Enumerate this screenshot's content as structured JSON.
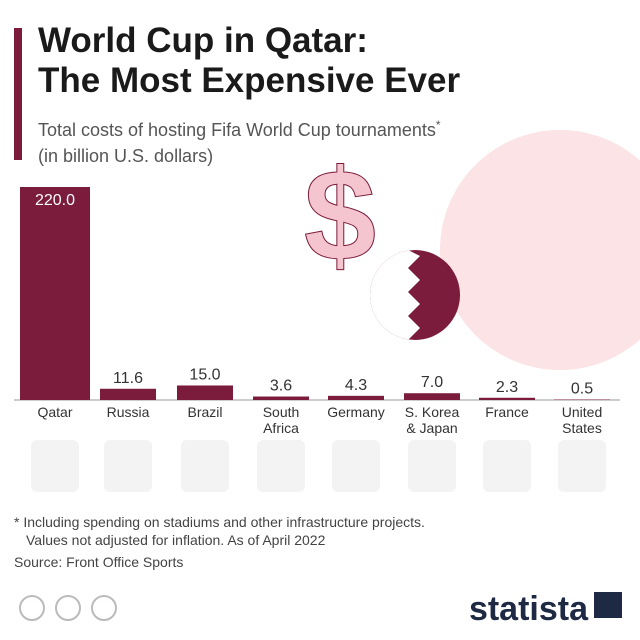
{
  "chart_data": {
    "type": "bar",
    "title": [
      "World Cup in Qatar:",
      "The Most Expensive Ever"
    ],
    "subtitle": [
      "Total costs of hosting Fifa World Cup tournaments",
      "(in billion U.S. dollars)"
    ],
    "subtitle_mark": "*",
    "categories": [
      "Qatar",
      "Russia",
      "Brazil",
      "South Africa",
      "Germany",
      "S. Korea & Japan",
      "France",
      "United States"
    ],
    "values": [
      220.0,
      11.6,
      15.0,
      3.6,
      4.3,
      7.0,
      2.3,
      0.5
    ],
    "value_labels": [
      "220.0",
      "11.6",
      "15.0",
      "3.6",
      "4.3",
      "7.0",
      "2.3",
      "0.5"
    ],
    "color": "#7b1c3c",
    "ylim": [
      0,
      220
    ],
    "footnote": [
      "* Including spending on stadiums and other infrastructure projects.",
      "Values not adjusted for inflation. As of April 2022"
    ],
    "source": "Source: Front Office Sports",
    "brand": "statista"
  }
}
